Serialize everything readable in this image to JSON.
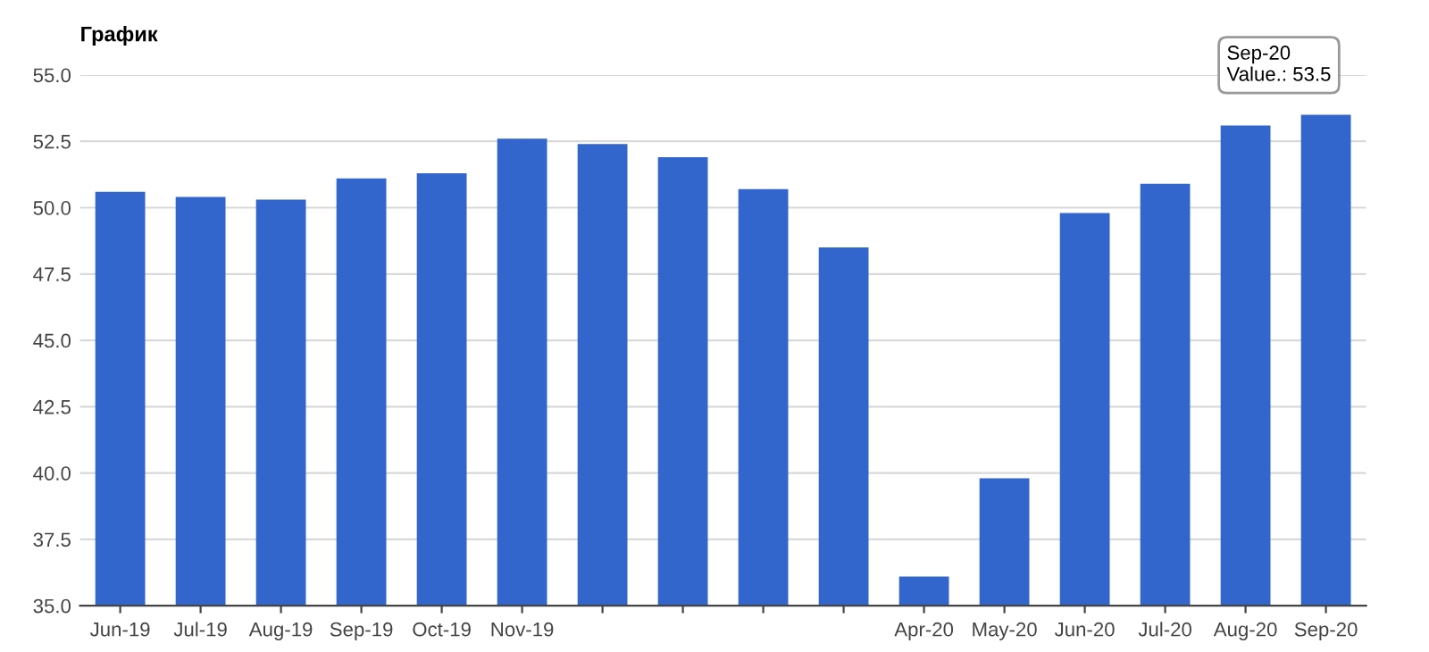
{
  "chart_data": {
    "type": "bar",
    "title": "График",
    "categories": [
      "Jun-19",
      "Jul-19",
      "Aug-19",
      "Sep-19",
      "Oct-19",
      "Nov-19",
      null,
      null,
      null,
      null,
      "Apr-20",
      "May-20",
      "Jun-20",
      "Jul-20",
      "Aug-20",
      "Sep-20"
    ],
    "values": [
      50.6,
      50.4,
      50.3,
      51.1,
      51.3,
      52.6,
      52.4,
      51.9,
      50.7,
      48.5,
      36.1,
      39.8,
      49.8,
      50.9,
      53.1,
      53.5
    ],
    "color": "#3366cc",
    "ylim": [
      35,
      55
    ],
    "yticks": [
      {
        "value": 35,
        "label": "35.0"
      },
      {
        "value": 37.5,
        "label": "37.5"
      },
      {
        "value": 40,
        "label": "40.0"
      },
      {
        "value": 42.5,
        "label": "42.5"
      },
      {
        "value": 45,
        "label": "45.0"
      },
      {
        "value": 47.5,
        "label": "47.5"
      },
      {
        "value": 50,
        "label": "50.0"
      },
      {
        "value": 52.5,
        "label": "52.5"
      },
      {
        "value": 55,
        "label": "55.0"
      }
    ],
    "grid": "y",
    "annotations": [
      {
        "text": "Sep-20\nValue.: 53.5",
        "x": "Sep-20",
        "y": 53.5
      }
    ]
  }
}
